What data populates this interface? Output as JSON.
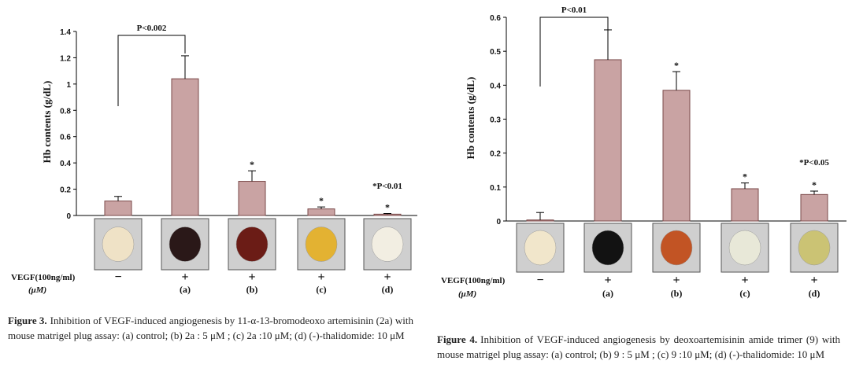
{
  "chart_data": [
    {
      "type": "bar",
      "y_label": "Hb contents (g/dL)",
      "color": "#c9a3a3",
      "categories": [
        null,
        "(a)",
        "(b)",
        "(c)",
        "(d)"
      ],
      "values": [
        0.11,
        1.04,
        0.26,
        0.05,
        0.01
      ],
      "errors": [
        0.035,
        0.175,
        0.08,
        0.015,
        0.005
      ],
      "markers": [
        null,
        null,
        "*",
        "*",
        "*"
      ],
      "ylim": [
        0,
        1.4
      ],
      "yticks": [
        0,
        0.2,
        0.4,
        0.6,
        0.8,
        1,
        1.2,
        1.4
      ],
      "row_labels": [
        "VEGF(100ng/ml)",
        "(μM)"
      ],
      "vegf": [
        "−",
        "+",
        "+",
        "+",
        "+"
      ],
      "bracket_label": "P<0.002",
      "annotation": "*P<0.01",
      "caption": {
        "label": "Figure 3.",
        "text": "Inhibition of VEGF-induced angiogenesis by 11-α-13-bromodeoxo artemisinin (2a) with mouse matrigel plug assay: (a) control; (b) 2a : 5 μM ; (c) 2a :10 μM; (d) (-)-thalidomide: 10 μM"
      }
    },
    {
      "type": "bar",
      "y_label": "Hb contents (g/dL)",
      "color": "#c9a3a3",
      "categories": [
        null,
        "(a)",
        "(b)",
        "(c)",
        "(d)"
      ],
      "values": [
        0.003,
        0.475,
        0.385,
        0.095,
        0.078
      ],
      "errors": [
        0.022,
        0.088,
        0.055,
        0.017,
        0.01
      ],
      "markers": [
        null,
        null,
        "*",
        "*",
        "*"
      ],
      "ylim": [
        0,
        0.6
      ],
      "yticks": [
        0,
        0.1,
        0.2,
        0.3,
        0.4,
        0.5,
        0.6
      ],
      "row_labels": [
        "VEGF(100ng/ml)",
        "(μM)"
      ],
      "vegf": [
        "−",
        "+",
        "+",
        "+",
        "+"
      ],
      "bracket_label": "P<0.01",
      "annotation": "*P<0.05",
      "caption": {
        "label": "Figure 4.",
        "text": "Inhibition of VEGF-induced angiogenesis by deoxoartemisinin amide trimer (9) with mouse matrigel plug assay: (a) control; (b) 9 : 5 μM ; (c) 9 :10 μM; (d) (-)-thalidomide: 10 μM"
      }
    }
  ]
}
